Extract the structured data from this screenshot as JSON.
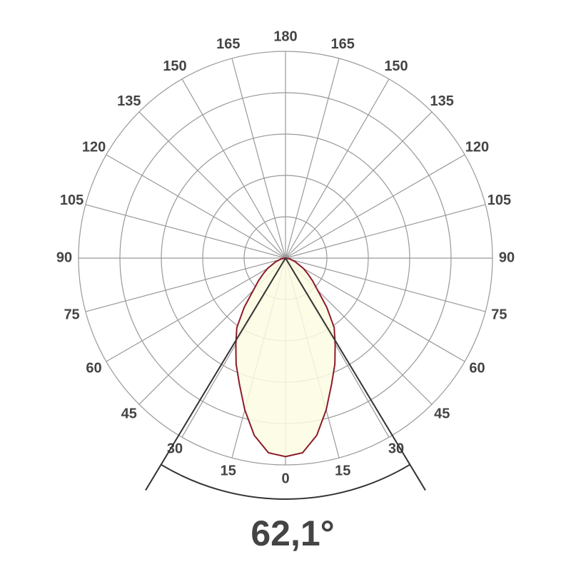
{
  "chart_data": {
    "type": "polar",
    "angles": [
      0,
      15,
      30,
      45,
      60,
      75,
      90,
      105,
      120,
      135,
      150,
      165,
      180
    ],
    "curve": {
      "color": "#8b1a2a",
      "fill": "#fdfbe3",
      "theta": [
        0,
        5,
        10,
        15,
        20,
        25,
        30,
        35,
        40,
        45,
        50,
        55,
        60,
        70,
        80,
        90
      ],
      "r": [
        0.96,
        0.945,
        0.87,
        0.76,
        0.65,
        0.565,
        0.48,
        0.41,
        0.31,
        0.22,
        0.17,
        0.13,
        0.1,
        0.05,
        0.02,
        0
      ]
    },
    "rlim": [
      0,
      1
    ],
    "beam_angle": {
      "value": 62.1,
      "label": "62,1°"
    }
  }
}
